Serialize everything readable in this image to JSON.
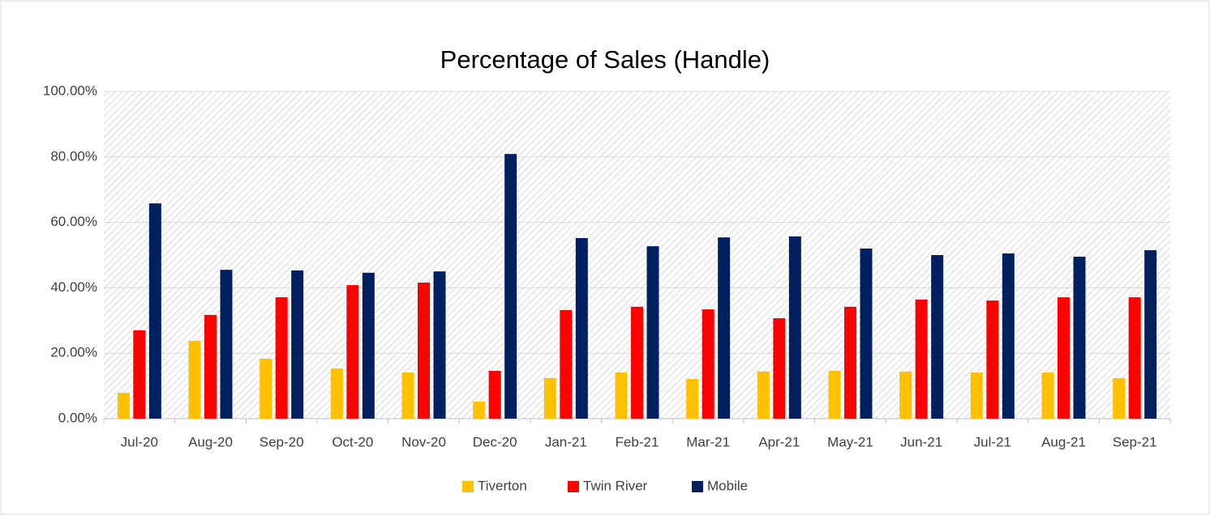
{
  "chart_data": {
    "type": "bar",
    "title": "Percentage of Sales (Handle)",
    "categories": [
      "Jul-20",
      "Aug-20",
      "Sep-20",
      "Oct-20",
      "Nov-20",
      "Dec-20",
      "Jan-21",
      "Feb-21",
      "Mar-21",
      "Apr-21",
      "May-21",
      "Jun-21",
      "Jul-21",
      "Aug-21",
      "Sep-21"
    ],
    "series": [
      {
        "name": "Tiverton",
        "color": "#ffc000",
        "values": [
          7.9,
          23.8,
          18.3,
          15.3,
          14.1,
          5.2,
          12.4,
          14.1,
          12.1,
          14.4,
          14.6,
          14.4,
          14.1,
          14.1,
          12.4
        ]
      },
      {
        "name": "Twin River",
        "color": "#ff0000",
        "values": [
          27.0,
          31.7,
          37.1,
          40.8,
          41.6,
          14.6,
          33.2,
          34.2,
          33.4,
          30.7,
          34.2,
          36.4,
          36.1,
          37.1,
          37.1
        ]
      },
      {
        "name": "Mobile",
        "color": "#002060",
        "values": [
          65.8,
          45.5,
          45.3,
          44.6,
          45.0,
          80.9,
          55.2,
          52.7,
          55.4,
          55.7,
          52.0,
          50.0,
          50.5,
          49.5,
          51.5
        ]
      }
    ],
    "ylim": [
      0,
      100
    ],
    "yticks": [
      {
        "value": 0,
        "label": "0.00%"
      },
      {
        "value": 20,
        "label": "20.00%"
      },
      {
        "value": 40,
        "label": "40.00%"
      },
      {
        "value": 60,
        "label": "60.00%"
      },
      {
        "value": 80,
        "label": "80.00%"
      },
      {
        "value": 100,
        "label": "100.00%"
      }
    ],
    "grid": true,
    "legend": "bottom"
  }
}
